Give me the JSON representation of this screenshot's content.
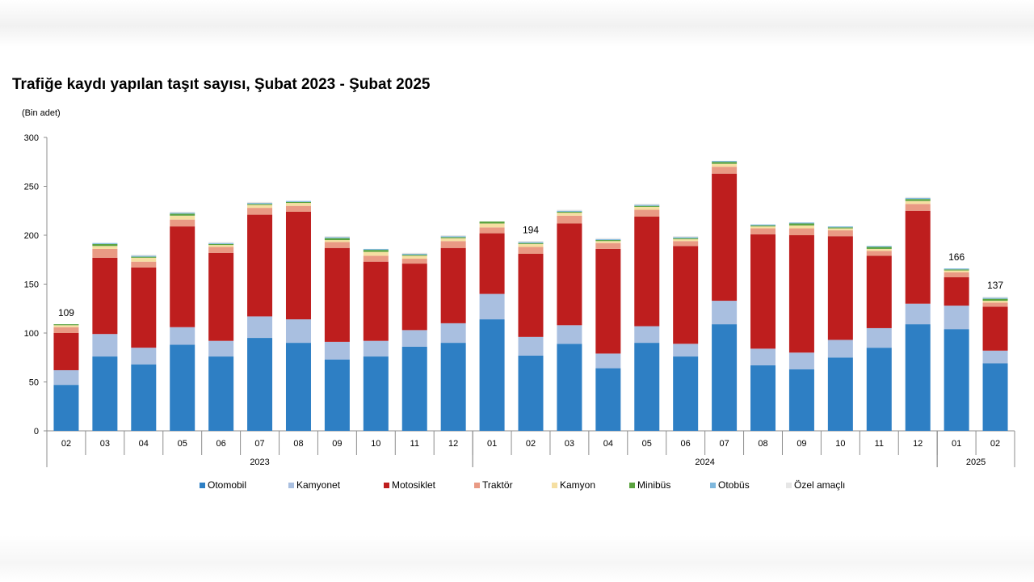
{
  "chart_data": {
    "type": "bar",
    "stacked": true,
    "title": "Trafiğe kaydı yapılan taşıt sayısı, Şubat 2023 - Şubat 2025",
    "unit_label": "(Bin adet)",
    "ylim": [
      0,
      300
    ],
    "yticks": [
      "300",
      "250",
      "200",
      "150",
      "100",
      "50",
      "0"
    ],
    "categories": [
      "02",
      "03",
      "04",
      "05",
      "06",
      "07",
      "08",
      "09",
      "10",
      "11",
      "12",
      "01",
      "02",
      "03",
      "04",
      "05",
      "06",
      "07",
      "08",
      "09",
      "10",
      "11",
      "12",
      "01",
      "02"
    ],
    "year_groups": [
      {
        "label": "2023",
        "start": 0,
        "end": 10
      },
      {
        "label": "2024",
        "start": 11,
        "end": 22
      },
      {
        "label": "2025",
        "start": 23,
        "end": 24
      }
    ],
    "series": [
      {
        "name": "Otomobil",
        "color": "#2e7fc4",
        "values": [
          47,
          76,
          68,
          88,
          76,
          95,
          90,
          73,
          76,
          86,
          90,
          114,
          77,
          89,
          64,
          90,
          76,
          109,
          67,
          63,
          75,
          85,
          109,
          104,
          69
        ]
      },
      {
        "name": "Kamyonet",
        "color": "#a9bfe0",
        "values": [
          15,
          23,
          17,
          18,
          16,
          22,
          24,
          18,
          16,
          17,
          20,
          26,
          19,
          19,
          15,
          17,
          13,
          24,
          17,
          17,
          18,
          20,
          21,
          24,
          13
        ]
      },
      {
        "name": "Motosiklet",
        "color": "#be1e1e",
        "values": [
          38,
          78,
          82,
          103,
          90,
          104,
          110,
          96,
          81,
          68,
          77,
          62,
          85,
          104,
          107,
          112,
          100,
          130,
          117,
          120,
          106,
          74,
          95,
          29,
          45
        ]
      },
      {
        "name": "Traktör",
        "color": "#e99a84",
        "values": [
          6,
          9,
          6,
          7,
          6,
          7,
          6,
          6,
          6,
          5,
          7,
          6,
          7,
          8,
          6,
          7,
          5,
          7,
          6,
          7,
          6,
          5,
          7,
          5,
          4
        ]
      },
      {
        "name": "Kamyon",
        "color": "#f5dfa2",
        "values": [
          2,
          3,
          4,
          4,
          2,
          3,
          3,
          2,
          4,
          3,
          3,
          4,
          3,
          3,
          2,
          3,
          2,
          3,
          2,
          3,
          2,
          2,
          3,
          2,
          2
        ]
      },
      {
        "name": "Minibüs",
        "color": "#5aa33f",
        "values": [
          1,
          2,
          1,
          2,
          1,
          1,
          1,
          2,
          2,
          1,
          1,
          2,
          1,
          1,
          1,
          1,
          1,
          2,
          1,
          2,
          1,
          2,
          2,
          1,
          2
        ]
      },
      {
        "name": "Otobüs",
        "color": "#7fb8dd",
        "values": [
          0,
          1,
          1,
          1,
          1,
          1,
          1,
          1,
          1,
          1,
          1,
          0,
          1,
          1,
          1,
          1,
          1,
          1,
          1,
          1,
          1,
          1,
          1,
          1,
          1
        ]
      },
      {
        "name": "Özel amaçlı",
        "color": "#e6e6e6",
        "values": [
          0,
          0,
          1,
          1,
          1,
          1,
          0,
          1,
          0,
          1,
          1,
          0,
          1,
          1,
          1,
          1,
          1,
          0,
          0,
          0,
          0,
          0,
          1,
          0,
          1
        ]
      }
    ],
    "data_labels": [
      {
        "index": 0,
        "text": "109"
      },
      {
        "index": 12,
        "text": "194"
      },
      {
        "index": 23,
        "text": "166"
      },
      {
        "index": 24,
        "text": "137"
      }
    ],
    "legend_position": "bottom",
    "grid": false
  }
}
